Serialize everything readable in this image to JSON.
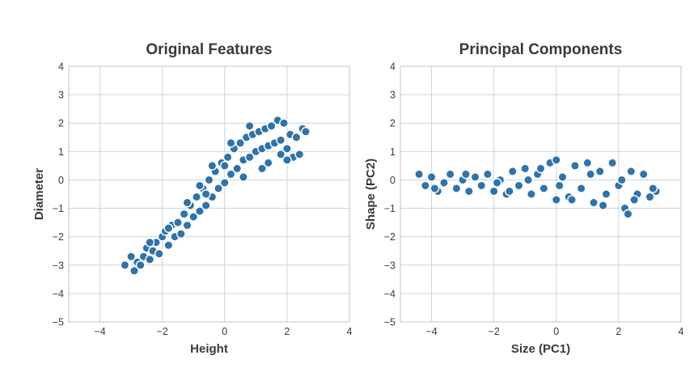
{
  "chart_data": [
    {
      "type": "scatter",
      "title": "Original Features",
      "xlabel": "Height",
      "ylabel": "Diameter",
      "xlim": [
        -5,
        4
      ],
      "ylim": [
        -5,
        4
      ],
      "xticks": [
        -4,
        -2,
        0,
        2,
        4
      ],
      "yticks": [
        -5,
        -4,
        -3,
        -2,
        -1,
        0,
        1,
        2,
        3,
        4
      ],
      "grid": true,
      "color": "#2f73aa",
      "points": [
        [
          -3.2,
          -3.0
        ],
        [
          -3.0,
          -2.7
        ],
        [
          -2.9,
          -3.2
        ],
        [
          -2.8,
          -2.9
        ],
        [
          -2.7,
          -3.0
        ],
        [
          -2.6,
          -2.7
        ],
        [
          -2.5,
          -2.4
        ],
        [
          -2.4,
          -2.8
        ],
        [
          -2.3,
          -2.5
        ],
        [
          -2.2,
          -2.2
        ],
        [
          -2.1,
          -2.6
        ],
        [
          -2.0,
          -2.0
        ],
        [
          -1.9,
          -1.8
        ],
        [
          -1.8,
          -2.3
        ],
        [
          -1.7,
          -1.6
        ],
        [
          -1.6,
          -2.0
        ],
        [
          -1.5,
          -1.5
        ],
        [
          -1.4,
          -1.9
        ],
        [
          -1.3,
          -1.2
        ],
        [
          -1.2,
          -1.6
        ],
        [
          -1.1,
          -0.9
        ],
        [
          -1.0,
          -1.3
        ],
        [
          -0.9,
          -0.6
        ],
        [
          -0.8,
          -1.1
        ],
        [
          -0.7,
          -0.3
        ],
        [
          -0.6,
          -0.9
        ],
        [
          -0.5,
          0.0
        ],
        [
          -0.4,
          -0.6
        ],
        [
          -0.3,
          0.3
        ],
        [
          -0.2,
          -0.3
        ],
        [
          -0.1,
          0.6
        ],
        [
          0.0,
          -0.1
        ],
        [
          0.1,
          0.8
        ],
        [
          0.2,
          0.2
        ],
        [
          0.3,
          1.1
        ],
        [
          0.4,
          0.4
        ],
        [
          0.5,
          1.3
        ],
        [
          0.6,
          0.7
        ],
        [
          0.7,
          1.5
        ],
        [
          0.8,
          0.8
        ],
        [
          0.9,
          1.6
        ],
        [
          1.0,
          1.0
        ],
        [
          1.1,
          1.7
        ],
        [
          1.2,
          1.1
        ],
        [
          1.3,
          1.8
        ],
        [
          1.4,
          1.2
        ],
        [
          1.5,
          1.9
        ],
        [
          1.6,
          1.3
        ],
        [
          1.7,
          2.1
        ],
        [
          1.8,
          1.4
        ],
        [
          1.9,
          2.0
        ],
        [
          2.0,
          1.1
        ],
        [
          2.1,
          1.6
        ],
        [
          2.2,
          0.8
        ],
        [
          2.3,
          1.5
        ],
        [
          2.4,
          0.9
        ],
        [
          2.5,
          1.8
        ],
        [
          2.6,
          1.7
        ],
        [
          -0.8,
          -0.2
        ],
        [
          -0.4,
          0.5
        ],
        [
          0.2,
          1.3
        ],
        [
          0.8,
          1.9
        ],
        [
          1.4,
          0.6
        ],
        [
          1.8,
          0.9
        ],
        [
          0.0,
          0.5
        ],
        [
          -0.6,
          -0.5
        ],
        [
          -1.2,
          -0.8
        ],
        [
          -1.8,
          -1.7
        ],
        [
          -2.4,
          -2.2
        ],
        [
          0.6,
          0.1
        ],
        [
          1.2,
          0.4
        ],
        [
          2.0,
          0.7
        ]
      ]
    },
    {
      "type": "scatter",
      "title": "Principal Components",
      "xlabel": "Size (PC1)",
      "ylabel": "Shape (PC2)",
      "xlim": [
        -5,
        4
      ],
      "ylim": [
        -5,
        4
      ],
      "xticks": [
        -4,
        -2,
        0,
        2,
        4
      ],
      "yticks": [
        -5,
        -4,
        -3,
        -2,
        -1,
        0,
        1,
        2,
        3,
        4
      ],
      "grid": true,
      "color": "#2f73aa",
      "points": [
        [
          -4.4,
          0.2
        ],
        [
          -4.2,
          -0.2
        ],
        [
          -4.0,
          0.1
        ],
        [
          -3.8,
          -0.4
        ],
        [
          -3.6,
          -0.1
        ],
        [
          -3.4,
          0.2
        ],
        [
          -3.2,
          -0.3
        ],
        [
          -3.0,
          0.0
        ],
        [
          -2.8,
          -0.4
        ],
        [
          -2.6,
          0.1
        ],
        [
          -2.4,
          -0.2
        ],
        [
          -2.2,
          0.2
        ],
        [
          -2.0,
          -0.4
        ],
        [
          -1.8,
          0.0
        ],
        [
          -1.6,
          -0.5
        ],
        [
          -1.4,
          0.3
        ],
        [
          -1.2,
          -0.2
        ],
        [
          -1.0,
          0.4
        ],
        [
          -0.8,
          -0.5
        ],
        [
          -0.6,
          0.2
        ],
        [
          -0.4,
          -0.3
        ],
        [
          -0.2,
          0.6
        ],
        [
          0.0,
          -0.7
        ],
        [
          0.0,
          0.7
        ],
        [
          0.2,
          0.1
        ],
        [
          0.4,
          -0.6
        ],
        [
          0.6,
          0.5
        ],
        [
          0.8,
          -0.3
        ],
        [
          1.0,
          0.6
        ],
        [
          1.2,
          -0.8
        ],
        [
          1.4,
          0.3
        ],
        [
          1.6,
          -0.5
        ],
        [
          1.8,
          0.6
        ],
        [
          2.0,
          -0.2
        ],
        [
          2.2,
          -1.0
        ],
        [
          2.3,
          -1.2
        ],
        [
          2.4,
          0.3
        ],
        [
          2.6,
          -0.5
        ],
        [
          2.8,
          0.2
        ],
        [
          3.0,
          -0.6
        ],
        [
          3.2,
          -0.4
        ],
        [
          -3.9,
          -0.3
        ],
        [
          -2.9,
          0.2
        ],
        [
          -1.9,
          -0.1
        ],
        [
          -0.9,
          0.0
        ],
        [
          0.1,
          -0.2
        ],
        [
          1.1,
          0.2
        ],
        [
          2.1,
          0.0
        ],
        [
          3.1,
          -0.3
        ],
        [
          -0.5,
          0.4
        ],
        [
          0.5,
          -0.7
        ],
        [
          1.5,
          -0.9
        ],
        [
          2.5,
          -0.7
        ],
        [
          -1.5,
          -0.4
        ]
      ]
    }
  ]
}
